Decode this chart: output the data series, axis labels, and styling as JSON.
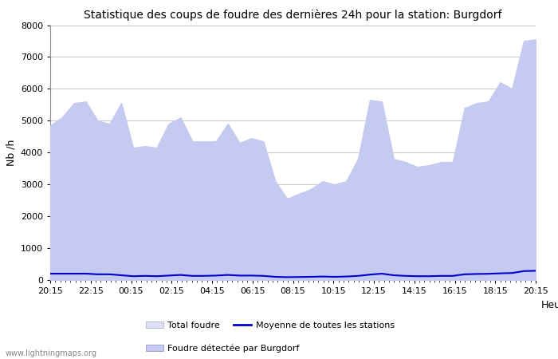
{
  "title": "Statistique des coups de foudre des dernières 24h pour la station: Burgdorf",
  "xlabel": "Heure",
  "ylabel": "Nb /h",
  "watermark": "www.lightningmaps.org",
  "ylim": [
    0,
    8000
  ],
  "yticks": [
    0,
    1000,
    2000,
    3000,
    4000,
    5000,
    6000,
    7000,
    8000
  ],
  "xtick_labels": [
    "20:15",
    "22:15",
    "00:15",
    "02:15",
    "04:15",
    "06:15",
    "08:15",
    "10:15",
    "12:15",
    "14:15",
    "16:15",
    "18:15",
    "20:15"
  ],
  "color_total": "#dcdff5",
  "color_burgdorf": "#c5caf0",
  "color_moyenne": "#0000cc",
  "total_foudre": [
    4850,
    5100,
    5550,
    5600,
    5000,
    4900,
    5550,
    4150,
    4200,
    4150,
    4900,
    5100,
    4350,
    4350,
    4350,
    4900,
    4300,
    4450,
    4350,
    3100,
    2550,
    2700,
    2850,
    3100,
    3000,
    3100,
    3800,
    5650,
    5600,
    3800,
    3700,
    3550,
    3600,
    3700,
    3700,
    5400,
    5550,
    5600,
    6200,
    6000,
    7500,
    7550
  ],
  "burgdorf": [
    4850,
    5100,
    5550,
    5600,
    5000,
    4900,
    5550,
    4150,
    4200,
    4150,
    4900,
    5100,
    4350,
    4350,
    4350,
    4900,
    4300,
    4450,
    4350,
    3100,
    2550,
    2700,
    2850,
    3100,
    3000,
    3100,
    3800,
    5650,
    5600,
    3800,
    3700,
    3550,
    3600,
    3700,
    3700,
    5400,
    5550,
    5600,
    6200,
    6000,
    7500,
    7550
  ],
  "moyenne": [
    200,
    200,
    200,
    200,
    180,
    180,
    150,
    120,
    130,
    120,
    140,
    160,
    130,
    130,
    140,
    160,
    140,
    140,
    130,
    100,
    90,
    95,
    100,
    110,
    100,
    110,
    130,
    170,
    200,
    150,
    130,
    120,
    120,
    130,
    130,
    180,
    190,
    195,
    210,
    220,
    280,
    290
  ],
  "legend_total_label": "Total foudre",
  "legend_burgdorf_label": "Foudre détectée par Burgdorf",
  "legend_moyenne_label": "Moyenne de toutes les stations"
}
